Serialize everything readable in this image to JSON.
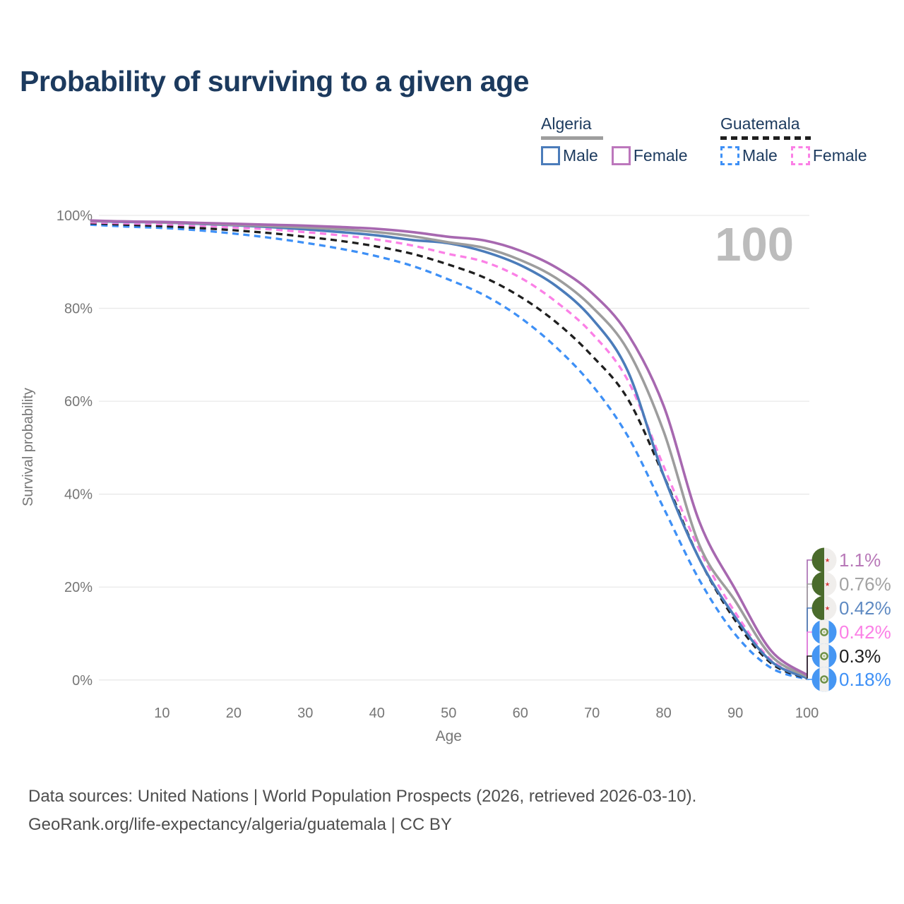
{
  "header": {
    "title": "Probability of surviving to a given age",
    "title_color": "#1c3a5e"
  },
  "legend": {
    "text_color": "#1c3a5e",
    "groups": [
      {
        "label": "Algeria",
        "line_style": "solid",
        "underline_color": "#9e9e9e",
        "items": [
          {
            "label": "Male",
            "color": "#4b7cba"
          },
          {
            "label": "Female",
            "color": "#bc77bc"
          }
        ]
      },
      {
        "label": "Guatemala",
        "line_style": "dashed",
        "underline_color": "#1f1f1f",
        "items": [
          {
            "label": "Male",
            "color": "#3e90f6"
          },
          {
            "label": "Female",
            "color": "#fb80e6"
          }
        ]
      }
    ]
  },
  "chart_data": {
    "type": "line",
    "title": "Probability of surviving to a given age",
    "xlabel": "Age",
    "ylabel": "Survival probability",
    "xlim": [
      0,
      100
    ],
    "ylim_percent": [
      0,
      100
    ],
    "grid": "horizontal",
    "x_ticks": [
      10,
      20,
      30,
      40,
      50,
      60,
      70,
      80,
      90,
      100
    ],
    "y_tick_labels": [
      "0%",
      "20%",
      "40%",
      "60%",
      "80%",
      "100%"
    ],
    "watermark": "100",
    "watermark_color": "#bcbcbc",
    "axis_text_color": "#767676",
    "gridline_color": "#e9e9e9",
    "ages": [
      0,
      5,
      10,
      15,
      20,
      25,
      30,
      35,
      40,
      45,
      50,
      55,
      60,
      65,
      70,
      75,
      80,
      85,
      90,
      95,
      100
    ],
    "series": [
      {
        "name": "Algeria Female",
        "country": "Algeria",
        "sex": "Female",
        "style": "solid",
        "color": "#a768b0",
        "end_label": "1.1%",
        "end_value_percent": 1.1,
        "label_color": "#b878b8",
        "values_percent": [
          98.9,
          98.7,
          98.6,
          98.4,
          98.2,
          98.0,
          97.8,
          97.5,
          97.1,
          96.4,
          95.4,
          94.6,
          92.4,
          88.8,
          83.3,
          74.5,
          59.0,
          34.0,
          19.5,
          6.3,
          1.1
        ]
      },
      {
        "name": "Algeria Both sexes",
        "country": "Algeria",
        "sex": "Both sexes",
        "style": "solid",
        "color": "#9d9d9d",
        "end_label": "0.76%",
        "end_value_percent": 0.76,
        "label_color": "#a3a3a3",
        "values_percent": [
          98.8,
          98.7,
          98.5,
          98.3,
          98.0,
          97.7,
          97.4,
          97.0,
          96.4,
          95.5,
          94.2,
          93.0,
          90.4,
          86.5,
          80.3,
          71.0,
          53.5,
          29.0,
          17.0,
          5.2,
          0.76
        ]
      },
      {
        "name": "Algeria Male",
        "country": "Algeria",
        "sex": "Male",
        "style": "solid",
        "color": "#4b7cba",
        "end_label": "0.42%",
        "end_value_percent": 0.42,
        "label_color": "#5f8ac2",
        "values_percent": [
          98.8,
          98.6,
          98.5,
          98.2,
          97.9,
          97.5,
          97.0,
          96.4,
          95.7,
          94.7,
          94.0,
          92.2,
          89.3,
          84.8,
          77.8,
          66.5,
          44.0,
          26.0,
          13.5,
          4.0,
          0.42
        ]
      },
      {
        "name": "Guatemala Female",
        "country": "Guatemala",
        "sex": "Female",
        "style": "dashed",
        "color": "#fb80e6",
        "end_label": "0.42%",
        "end_value_percent": 0.42,
        "label_color": "#fb80e6",
        "values_percent": [
          98.5,
          98.3,
          98.1,
          97.8,
          97.4,
          97.0,
          96.4,
          95.7,
          94.8,
          93.5,
          91.7,
          90.0,
          86.6,
          81.4,
          74.6,
          64.5,
          46.0,
          28.0,
          14.5,
          4.3,
          0.42
        ]
      },
      {
        "name": "Guatemala Both sexes",
        "country": "Guatemala",
        "sex": "Both sexes",
        "style": "dashed",
        "color": "#1f1f1f",
        "end_label": "0.3%",
        "end_value_percent": 0.3,
        "label_color": "#222222",
        "values_percent": [
          98.3,
          98.0,
          97.7,
          97.3,
          96.8,
          96.2,
          95.4,
          94.5,
          93.3,
          91.7,
          89.4,
          86.6,
          82.5,
          77.0,
          69.8,
          60.5,
          44.0,
          26.0,
          12.8,
          3.6,
          0.3
        ]
      },
      {
        "name": "Guatemala Male",
        "country": "Guatemala",
        "sex": "Male",
        "style": "dashed",
        "color": "#3e90f6",
        "end_label": "0.18%",
        "end_value_percent": 0.18,
        "label_color": "#3e90f6",
        "values_percent": [
          98.0,
          97.6,
          97.3,
          96.8,
          96.1,
          95.2,
          94.1,
          92.8,
          91.2,
          89.1,
          86.2,
          82.8,
          78.0,
          71.6,
          63.5,
          52.5,
          37.0,
          21.5,
          9.8,
          2.6,
          0.18
        ]
      }
    ],
    "flag_colors": {
      "algeria_green": "#4a6b2c",
      "algeria_white": "#f0eeec",
      "algeria_red": "#d53b3b",
      "guatemala_blue": "#4596f3",
      "guatemala_white": "#f2f0ee",
      "guatemala_wreath": "#6d8f44"
    }
  },
  "footer": {
    "line1": "Data sources: United Nations | World Population Prospects (2026, retrieved 2026-03-10).",
    "line2": "GeoRank.org/life-expectancy/algeria/guatemala | CC BY"
  }
}
